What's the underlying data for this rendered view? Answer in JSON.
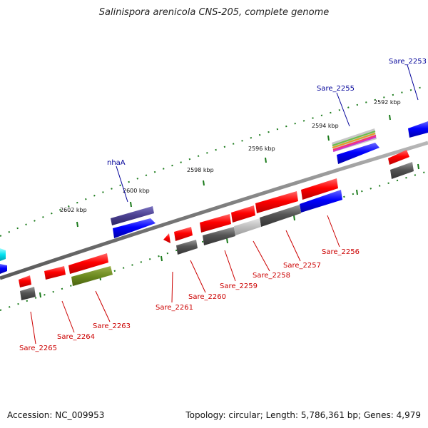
{
  "title": "Salinispora arenicola CNS-205, complete genome",
  "footer": {
    "accession": "Accession: NC_009953",
    "genome_info": "Topology: circular; Length: 5,786,361 bp; Genes: 4,979"
  },
  "colors": {
    "backbone": "#8a8a8a",
    "cds": "#ff0000",
    "rna": "#0000ff",
    "pseudo": "#555555",
    "tick": "#1a7a1a",
    "label_forward": "#000099",
    "label_reverse": "#cc0000"
  },
  "scale_labels": [
    "2602 kbp",
    "2600 kbp",
    "2598 kbp",
    "2596 kbp",
    "2594 kbp",
    "2592 kbp"
  ],
  "gene_labels": {
    "forward": [
      "Sare_2253",
      "Sare_2255",
      "nhaA"
    ],
    "reverse": [
      "Sare_2256",
      "Sare_2257",
      "Sare_2258",
      "Sare_2259",
      "Sare_2260",
      "Sare_2261",
      "Sare_2263",
      "Sare_2264",
      "Sare_2265"
    ]
  }
}
